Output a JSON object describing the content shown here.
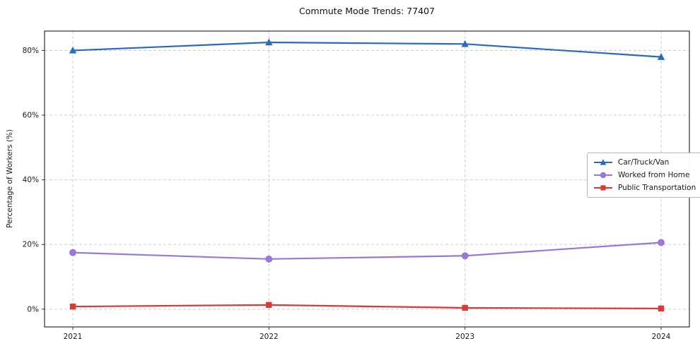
{
  "title": "Commute Mode Trends: 77407",
  "chart_data": {
    "type": "line",
    "title": "Commute Mode Trends: 77407",
    "xlabel": "",
    "ylabel": "Percentage of Workers (%)",
    "categories": [
      "2021",
      "2022",
      "2023",
      "2024"
    ],
    "series": [
      {
        "name": "Car/Truck/Van",
        "values": [
          80.0,
          82.5,
          82.0,
          78.0
        ],
        "color": "#2a6bbf",
        "marker": "triangle"
      },
      {
        "name": "Worked from Home",
        "values": [
          17.5,
          15.5,
          16.5,
          20.6
        ],
        "color": "#9879d9",
        "marker": "circle"
      },
      {
        "name": "Public Transportation",
        "values": [
          0.8,
          1.3,
          0.4,
          0.2
        ],
        "color": "#d83a34",
        "marker": "square"
      }
    ],
    "yticks": [
      0,
      20,
      40,
      60,
      80
    ],
    "ytick_labels": [
      "0%",
      "20%",
      "40%",
      "60%",
      "80%"
    ],
    "ylim": [
      -5.5,
      86
    ],
    "grid": true,
    "grid_style": "dashed",
    "legend_position": "center-right"
  }
}
